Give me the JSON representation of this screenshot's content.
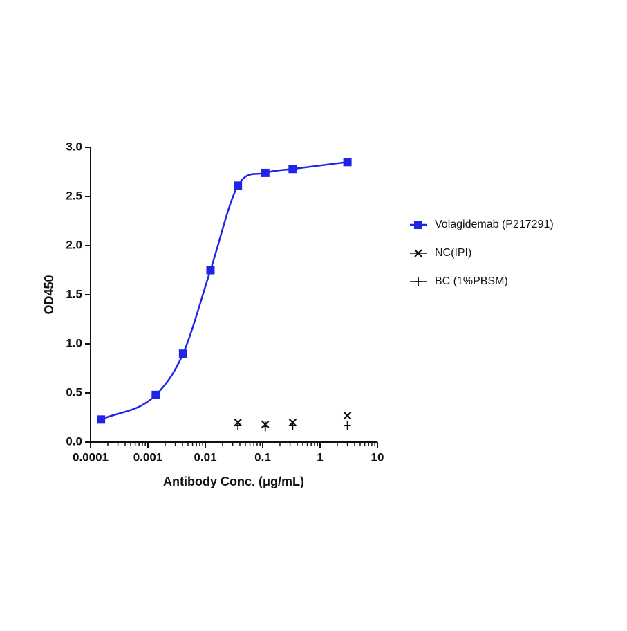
{
  "chart_data": {
    "type": "line",
    "x_label": "Antibody Conc. (μg/mL)",
    "y_label": "OD450",
    "x": [
      0.000152,
      0.00137,
      0.0041,
      0.0123,
      0.037,
      0.111,
      0.333,
      3
    ],
    "series": [
      {
        "name": "Volagidemab  (P217291)",
        "color": "#1f24e6",
        "marker": "square",
        "line": true,
        "values": [
          0.23,
          0.48,
          0.9,
          1.75,
          2.61,
          2.74,
          2.78,
          2.85
        ]
      },
      {
        "name": "NC(IPI)",
        "color": "#111111",
        "marker": "x",
        "line": false,
        "values": [
          null,
          null,
          null,
          null,
          0.2,
          0.18,
          0.2,
          0.27
        ]
      },
      {
        "name": "BC (1%PBSM)",
        "color": "#111111",
        "marker": "plus",
        "line": false,
        "values": [
          null,
          null,
          null,
          null,
          0.17,
          0.16,
          0.17,
          0.17
        ]
      }
    ],
    "xscale": "log",
    "xlim": [
      0.0001,
      10
    ],
    "xticks": [
      0.0001,
      0.001,
      0.01,
      0.1,
      1,
      10
    ],
    "ylim": [
      0,
      3
    ],
    "yticks": [
      {
        "value": 0,
        "label": "0.0"
      },
      0.5,
      {
        "value": 1,
        "label": "1.0"
      },
      1.5,
      {
        "value": 2,
        "label": "2.0"
      },
      2.5,
      {
        "value": 3,
        "label": "3.0"
      }
    ],
    "legend": "right"
  }
}
